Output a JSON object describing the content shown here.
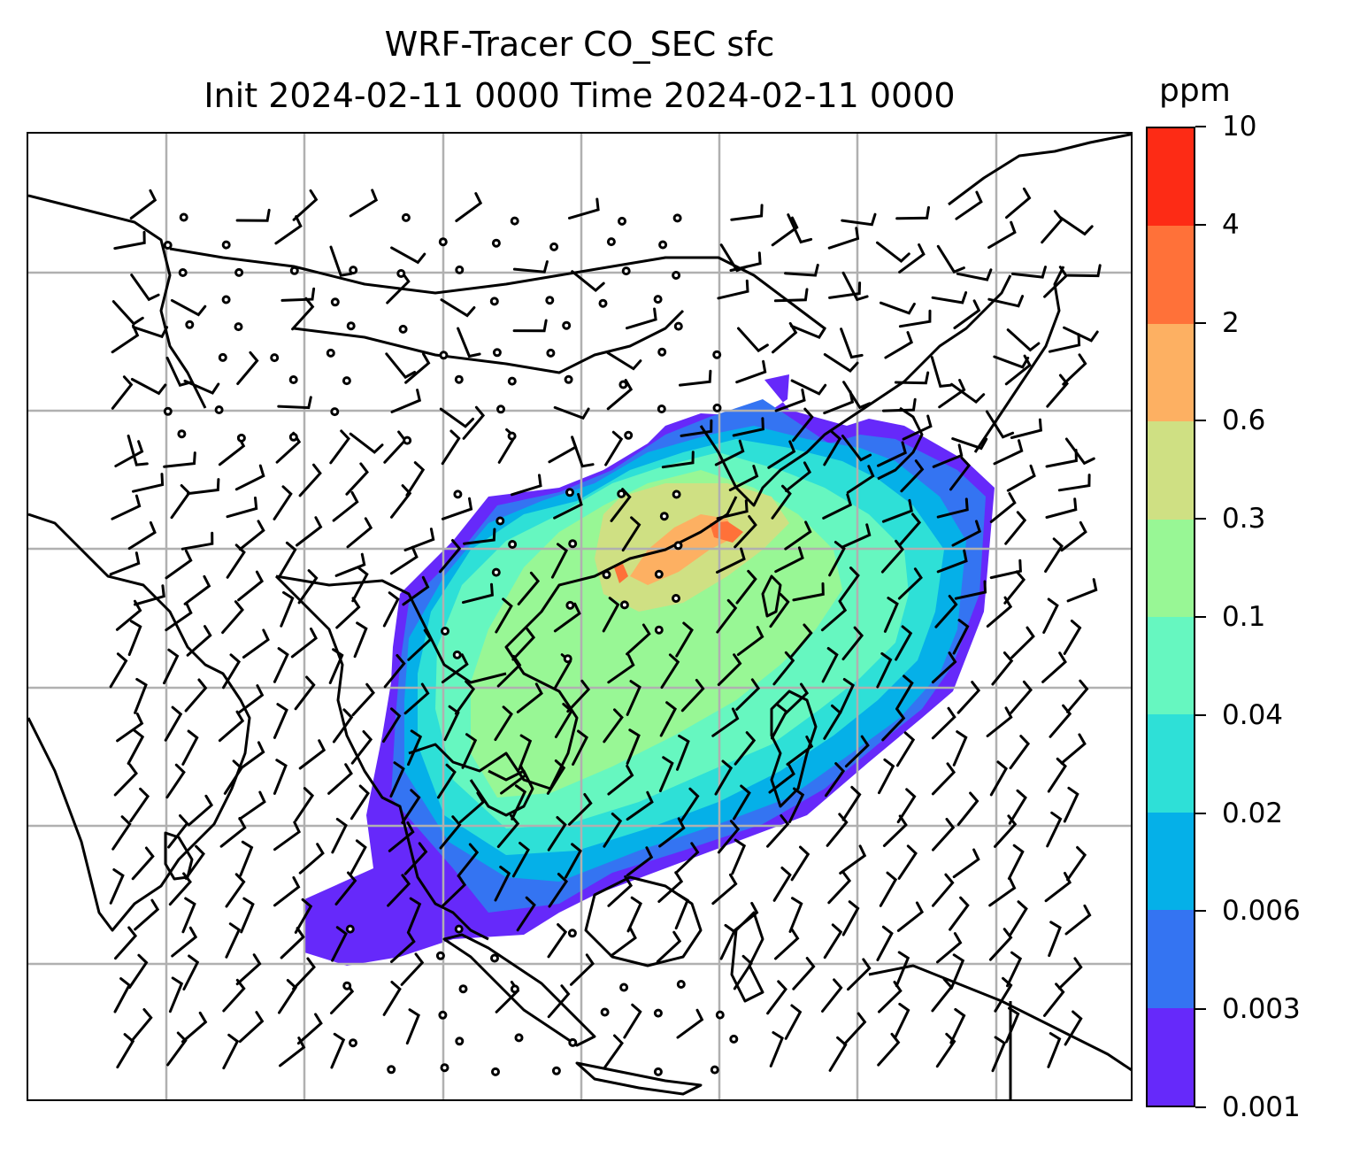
{
  "title": {
    "line1": "WRF-Tracer CO_SEC sfc",
    "line2": "Init 2024-02-11 0000 Time 2024-02-11 0000"
  },
  "colorbar": {
    "unit": "ppm",
    "levels": [
      "0.001",
      "0.003",
      "0.006",
      "0.02",
      "0.04",
      "0.1",
      "0.3",
      "0.6",
      "2",
      "4",
      "10"
    ],
    "colors": [
      "#6629fa",
      "#3474f2",
      "#05b0e8",
      "#2ee0d7",
      "#66f7c0",
      "#98f795",
      "#cfe083",
      "#fdb062",
      "#ff7139",
      "#fd2b15"
    ]
  },
  "map": {
    "gridlines": true,
    "coastline_color": "#000000",
    "gridline_color": "#b0b0b0",
    "overlay": "wind barbs and calm-wind circles"
  }
}
